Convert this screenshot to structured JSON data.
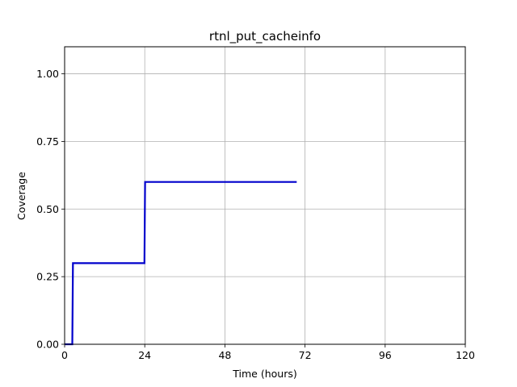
{
  "chart_data": {
    "type": "line",
    "title": "rtnl_put_cacheinfo",
    "xlabel": "Time (hours)",
    "ylabel": "Coverage",
    "xlim": [
      0,
      120
    ],
    "ylim": [
      0,
      1.1
    ],
    "x_ticks": [
      0,
      24,
      48,
      72,
      96,
      120
    ],
    "x_tick_labels": [
      "0",
      "24",
      "48",
      "72",
      "96",
      "120"
    ],
    "y_ticks": [
      0,
      0.25,
      0.5,
      0.75,
      1.0
    ],
    "y_tick_labels": [
      "0.00",
      "0.25",
      "0.50",
      "0.75",
      "1.00"
    ],
    "grid": true,
    "series": [
      {
        "color": "#0000cc",
        "step": true,
        "x": [
          0,
          2.3,
          2.5,
          23.9,
          24.1,
          69.5
        ],
        "y": [
          0,
          0,
          0.3,
          0.3,
          0.6,
          0.6
        ]
      }
    ]
  }
}
